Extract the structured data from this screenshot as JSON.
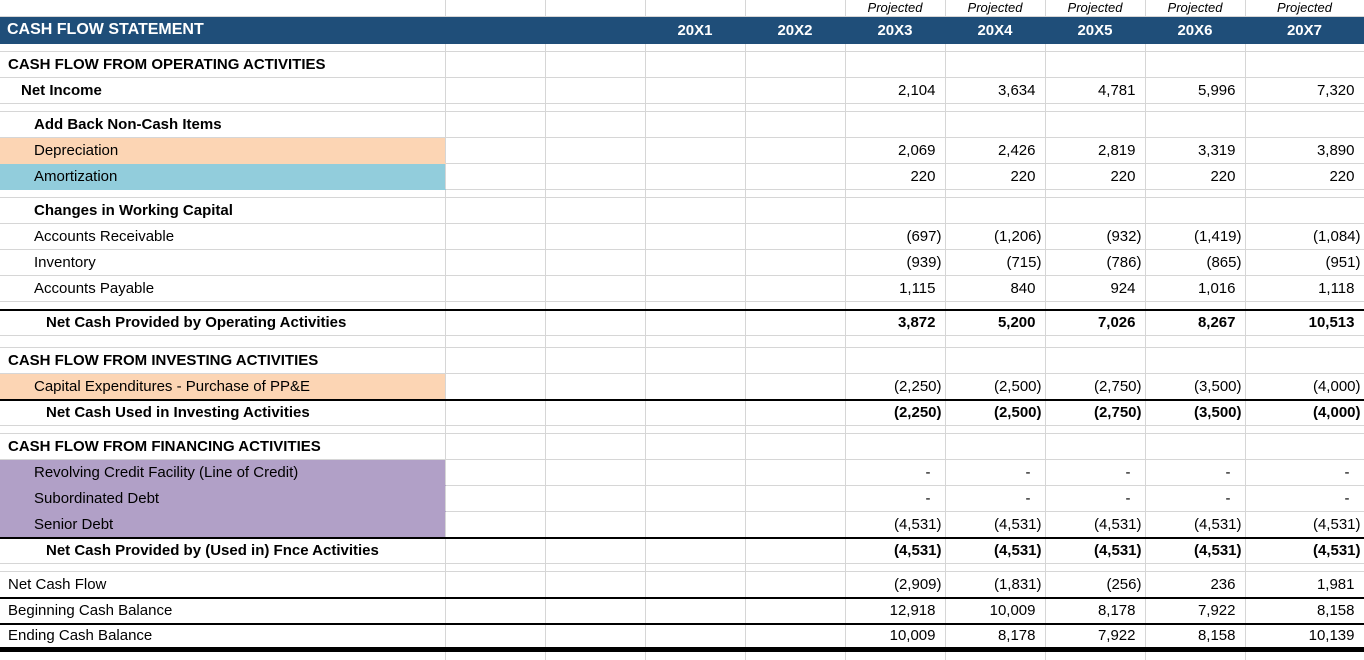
{
  "header": {
    "projected_label": "Projected",
    "title": "CASH FLOW STATEMENT",
    "years": [
      {
        "label": "20X1",
        "projected": false
      },
      {
        "label": "20X2",
        "projected": false
      },
      {
        "label": "20X3",
        "projected": true
      },
      {
        "label": "20X4",
        "projected": true
      },
      {
        "label": "20X5",
        "projected": true
      },
      {
        "label": "20X6",
        "projected": true
      },
      {
        "label": "20X7",
        "projected": true
      }
    ]
  },
  "colors": {
    "header_bg": "#1F4E79",
    "highlight_orange": "#FCD5B4",
    "highlight_blue": "#92CDDC",
    "highlight_purple": "#B1A0C7",
    "gridline": "#D6D6D6",
    "border_black": "#000000"
  },
  "layout_cols": {
    "label_width": 445,
    "data_width": 100,
    "last_width": 119
  },
  "rows": [
    {
      "type": "spacer",
      "h": 8
    },
    {
      "type": "section",
      "label": "CASH FLOW FROM OPERATING ACTIVITIES"
    },
    {
      "type": "item",
      "label": "Net Income",
      "indent": 1,
      "bold": true,
      "values": [
        "2,104",
        "3,634",
        "4,781",
        "5,996",
        "7,320"
      ]
    },
    {
      "type": "spacer",
      "h": 8
    },
    {
      "type": "item",
      "label": "Add Back Non-Cash Items",
      "indent": 2,
      "bold": true,
      "values": [
        "",
        "",
        "",
        "",
        ""
      ]
    },
    {
      "type": "item",
      "label": "Depreciation",
      "indent": 2,
      "highlight": "orange",
      "values": [
        "2,069",
        "2,426",
        "2,819",
        "3,319",
        "3,890"
      ]
    },
    {
      "type": "item",
      "label": "Amortization",
      "indent": 2,
      "highlight": "blue",
      "values": [
        "220",
        "220",
        "220",
        "220",
        "220"
      ]
    },
    {
      "type": "spacer",
      "h": 8
    },
    {
      "type": "item",
      "label": "Changes in Working Capital",
      "indent": 2,
      "bold": true,
      "values": [
        "",
        "",
        "",
        "",
        ""
      ]
    },
    {
      "type": "item",
      "label": "Accounts Receivable",
      "indent": 2,
      "values": [
        "(697)",
        "(1,206)",
        "(932)",
        "(1,419)",
        "(1,084)"
      ]
    },
    {
      "type": "item",
      "label": "Inventory",
      "indent": 2,
      "values": [
        "(939)",
        "(715)",
        "(786)",
        "(865)",
        "(951)"
      ]
    },
    {
      "type": "item",
      "label": "Accounts Payable",
      "indent": 2,
      "values": [
        "1,115",
        "840",
        "924",
        "1,016",
        "1,118"
      ]
    },
    {
      "type": "spacer",
      "h": 8
    },
    {
      "type": "item",
      "label": "Net Cash Provided by Operating Activities",
      "indent": 3,
      "bold": true,
      "value_bold": true,
      "border_top": true,
      "values": [
        "3,872",
        "5,200",
        "7,026",
        "8,267",
        "10,513"
      ]
    },
    {
      "type": "spacer",
      "h": 12
    },
    {
      "type": "section",
      "label": "CASH FLOW FROM INVESTING ACTIVITIES"
    },
    {
      "type": "item",
      "label": "Capital Expenditures - Purchase of PP&E",
      "indent": 2,
      "highlight": "orange",
      "values": [
        "(2,250)",
        "(2,500)",
        "(2,750)",
        "(3,500)",
        "(4,000)"
      ]
    },
    {
      "type": "item",
      "label": "Net Cash Used in Investing Activities",
      "indent": 3,
      "bold": true,
      "value_bold": true,
      "border_top": true,
      "values": [
        "(2,250)",
        "(2,500)",
        "(2,750)",
        "(3,500)",
        "(4,000)"
      ]
    },
    {
      "type": "spacer",
      "h": 8
    },
    {
      "type": "section",
      "label": "CASH FLOW FROM FINANCING ACTIVITIES"
    },
    {
      "type": "item",
      "label": "Revolving Credit Facility (Line of Credit)",
      "indent": 2,
      "highlight": "purple",
      "values": [
        "-",
        "-",
        "-",
        "-",
        "-"
      ]
    },
    {
      "type": "item",
      "label": "Subordinated Debt",
      "indent": 2,
      "highlight": "purple",
      "values": [
        "-",
        "-",
        "-",
        "-",
        "-"
      ]
    },
    {
      "type": "item",
      "label": "Senior Debt",
      "indent": 2,
      "highlight": "purple",
      "values": [
        "(4,531)",
        "(4,531)",
        "(4,531)",
        "(4,531)",
        "(4,531)"
      ]
    },
    {
      "type": "item",
      "label": "Net Cash Provided by (Used in) Fnce Activities",
      "indent": 3,
      "bold": true,
      "value_bold": true,
      "border_top": true,
      "values": [
        "(4,531)",
        "(4,531)",
        "(4,531)",
        "(4,531)",
        "(4,531)"
      ]
    },
    {
      "type": "spacer",
      "h": 8
    },
    {
      "type": "item",
      "label": "Net Cash Flow",
      "indent": 0,
      "values": [
        "(2,909)",
        "(1,831)",
        "(256)",
        "236",
        "1,981"
      ]
    },
    {
      "type": "item",
      "label": "Beginning Cash Balance",
      "indent": 0,
      "border_top": true,
      "values": [
        "12,918",
        "10,009",
        "8,178",
        "7,922",
        "8,158"
      ]
    },
    {
      "type": "item",
      "label": "Ending Cash Balance",
      "indent": 0,
      "border_top": true,
      "thick_bottom": true,
      "values": [
        "10,009",
        "8,178",
        "7,922",
        "8,158",
        "10,139"
      ]
    },
    {
      "type": "spacer",
      "h": 11
    }
  ]
}
